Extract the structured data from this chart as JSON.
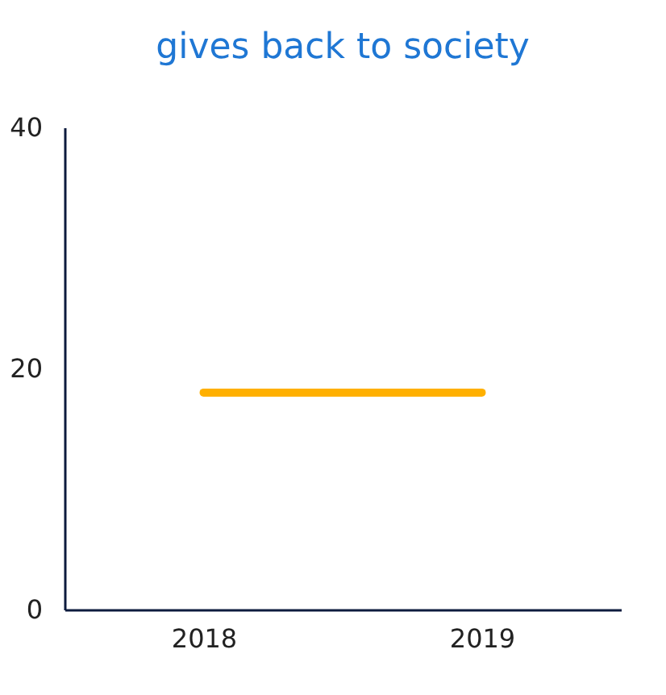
{
  "chart_data": {
    "type": "line",
    "title": "gives back to society",
    "categories": [
      "2018",
      "2019"
    ],
    "series": [
      {
        "color": "#ffb000",
        "values": [
          18,
          18
        ]
      }
    ],
    "ylim": [
      0,
      40
    ],
    "yticks": [
      0,
      20,
      40
    ],
    "grid": false,
    "marker": "none",
    "line_style": "solid"
  }
}
